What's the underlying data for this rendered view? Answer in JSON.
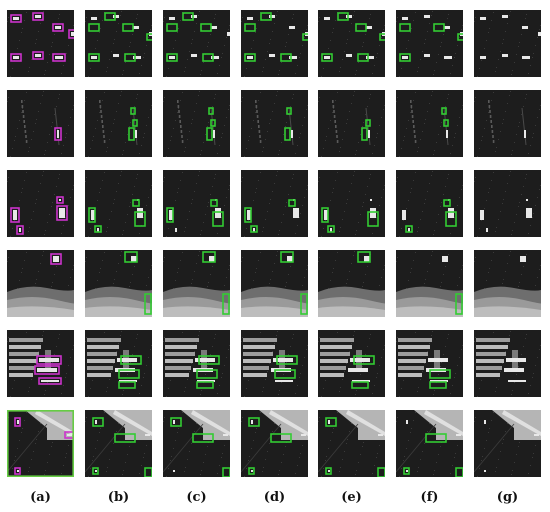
{
  "columns": [
    {
      "id": "a",
      "label": "(a)"
    },
    {
      "id": "b",
      "label": "(b)"
    },
    {
      "id": "c",
      "label": "(c)"
    },
    {
      "id": "d",
      "label": "(d)"
    },
    {
      "id": "e",
      "label": "(e)"
    },
    {
      "id": "f",
      "label": "(f)"
    },
    {
      "id": "g",
      "label": "(g)"
    }
  ],
  "rows": [
    {
      "scene": "open-sea-ships"
    },
    {
      "scene": "sea-with-wakes"
    },
    {
      "scene": "sea-scattered-ships"
    },
    {
      "scene": "coastline-land"
    },
    {
      "scene": "harbor-docks"
    },
    {
      "scene": "harbor-corner"
    }
  ],
  "colors": {
    "ground_truth_box": "#cc33cc",
    "detection_box": "#33cc33",
    "background": "#1d1d1d",
    "frame_highlight": "#66cc44"
  }
}
